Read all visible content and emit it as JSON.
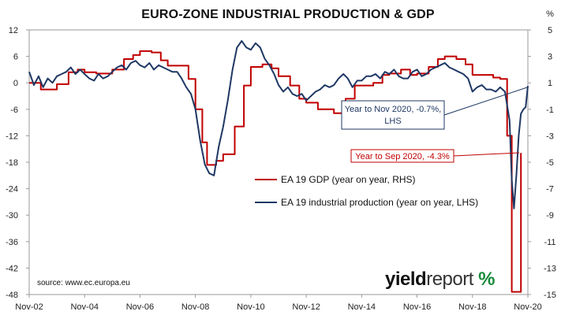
{
  "chart_data": {
    "type": "line",
    "title": "EURO-ZONE INDUSTRIAL PRODUCTION & GDP",
    "x_tick_labels": [
      "Nov-02",
      "Nov-04",
      "Nov-06",
      "Nov-08",
      "Nov-10",
      "Nov-12",
      "Nov-14",
      "Nov-16",
      "Nov-18",
      "Nov-20"
    ],
    "x_range": [
      2002.83,
      2020.83
    ],
    "left_axis": {
      "range": [
        -48,
        12
      ],
      "ticks": [
        12,
        6,
        0,
        -6,
        -12,
        -18,
        -24,
        -30,
        -36,
        -42,
        -48
      ]
    },
    "right_axis": {
      "unit_label": "%",
      "range": [
        -15,
        5
      ],
      "ticks": [
        5,
        3,
        1,
        -1,
        -3,
        -5,
        -7,
        -9,
        -11,
        -13,
        -15
      ]
    },
    "grid": false,
    "legend": {
      "placement": "center-right",
      "entries": [
        {
          "name": "EA 19 GDP (year on year, RHS)",
          "color": "#c00000"
        },
        {
          "name": "EA 19 industrial production (year on year, LHS)",
          "color": "#1f3864"
        }
      ]
    },
    "series": [
      {
        "name": "EA 19 GDP (year on year, RHS)",
        "axis": "right",
        "color": "#c00000",
        "x": [
          2002.83,
          2003.25,
          2003.58,
          2003.83,
          2004.25,
          2004.58,
          2004.83,
          2005.25,
          2005.58,
          2005.83,
          2006.25,
          2006.58,
          2006.83,
          2007.25,
          2007.58,
          2007.83,
          2008.25,
          2008.58,
          2008.83,
          2009.08,
          2009.25,
          2009.58,
          2009.83,
          2010.25,
          2010.58,
          2010.83,
          2011.25,
          2011.58,
          2011.83,
          2012.25,
          2012.58,
          2012.83,
          2013.25,
          2013.58,
          2013.83,
          2014.25,
          2014.58,
          2014.83,
          2015.25,
          2015.58,
          2015.83,
          2016.25,
          2016.58,
          2016.83,
          2017.25,
          2017.58,
          2017.83,
          2018.25,
          2018.58,
          2018.83,
          2019.25,
          2019.58,
          2019.83,
          2020.08,
          2020.25,
          2020.42,
          2020.58
        ],
        "values": [
          1.0,
          0.5,
          0.5,
          0.9,
          1.8,
          2.0,
          1.8,
          1.7,
          1.7,
          2.0,
          2.8,
          3.1,
          3.4,
          3.3,
          2.7,
          2.3,
          2.3,
          1.3,
          -1.0,
          -3.5,
          -5.2,
          -4.9,
          -4.4,
          -2.3,
          0.8,
          2.2,
          2.4,
          2.1,
          1.5,
          0.8,
          -0.2,
          -0.5,
          -1.0,
          -1.0,
          -1.3,
          -0.2,
          0.8,
          0.8,
          1.0,
          1.6,
          1.7,
          2.0,
          1.6,
          1.7,
          2.2,
          2.8,
          3.0,
          2.8,
          2.4,
          1.6,
          1.6,
          1.4,
          1.3,
          -3.0,
          -14.8,
          -14.8,
          -4.3
        ]
      },
      {
        "name": "EA 19 industrial production (year on year, LHS)",
        "axis": "left",
        "color": "#1f3864",
        "x": [
          2002.83,
          2003.0,
          2003.17,
          2003.33,
          2003.5,
          2003.67,
          2003.83,
          2004.0,
          2004.17,
          2004.33,
          2004.5,
          2004.67,
          2004.83,
          2005.0,
          2005.17,
          2005.33,
          2005.5,
          2005.67,
          2005.83,
          2006.0,
          2006.17,
          2006.33,
          2006.5,
          2006.67,
          2006.83,
          2007.0,
          2007.17,
          2007.33,
          2007.5,
          2007.67,
          2007.83,
          2008.0,
          2008.17,
          2008.33,
          2008.5,
          2008.67,
          2008.83,
          2009.0,
          2009.17,
          2009.33,
          2009.5,
          2009.67,
          2009.83,
          2010.0,
          2010.17,
          2010.33,
          2010.5,
          2010.67,
          2010.83,
          2011.0,
          2011.17,
          2011.33,
          2011.5,
          2011.67,
          2011.83,
          2012.0,
          2012.17,
          2012.33,
          2012.5,
          2012.67,
          2012.83,
          2013.0,
          2013.17,
          2013.33,
          2013.5,
          2013.67,
          2013.83,
          2014.0,
          2014.17,
          2014.33,
          2014.5,
          2014.67,
          2014.83,
          2015.0,
          2015.17,
          2015.33,
          2015.5,
          2015.67,
          2015.83,
          2016.0,
          2016.17,
          2016.33,
          2016.5,
          2016.67,
          2016.83,
          2017.0,
          2017.17,
          2017.33,
          2017.5,
          2017.67,
          2017.83,
          2018.0,
          2018.17,
          2018.33,
          2018.5,
          2018.67,
          2018.83,
          2019.0,
          2019.17,
          2019.33,
          2019.5,
          2019.67,
          2019.83,
          2020.0,
          2020.17,
          2020.25,
          2020.33,
          2020.42,
          2020.5,
          2020.58,
          2020.67,
          2020.75,
          2020.83
        ],
        "values": [
          2.5,
          -0.5,
          1.5,
          -1.0,
          1.0,
          0.0,
          1.5,
          2.0,
          2.5,
          3.5,
          2.0,
          3.0,
          2.0,
          1.0,
          0.5,
          2.0,
          1.0,
          1.5,
          2.5,
          3.5,
          4.0,
          3.0,
          4.5,
          5.0,
          4.0,
          3.5,
          4.5,
          3.0,
          4.0,
          3.5,
          3.0,
          2.5,
          2.5,
          1.0,
          -1.0,
          -2.5,
          -6.0,
          -13.0,
          -18.5,
          -20.5,
          -21.0,
          -14.5,
          -10.0,
          -4.0,
          3.0,
          8.0,
          9.5,
          8.0,
          7.5,
          9.0,
          8.0,
          5.5,
          4.0,
          2.0,
          -0.5,
          -2.0,
          -1.0,
          -2.5,
          -3.0,
          -2.5,
          -4.0,
          -3.0,
          -2.0,
          -1.5,
          -0.5,
          -1.0,
          -0.5,
          1.0,
          2.0,
          1.0,
          -1.0,
          0.5,
          0.5,
          1.5,
          1.5,
          2.0,
          1.0,
          2.5,
          2.0,
          3.0,
          1.5,
          1.0,
          1.0,
          2.5,
          3.0,
          1.5,
          2.0,
          3.0,
          3.5,
          4.0,
          4.5,
          3.5,
          3.0,
          2.5,
          2.0,
          1.0,
          -2.0,
          -1.0,
          -0.5,
          -1.5,
          -1.5,
          -2.0,
          -1.0,
          -2.0,
          -8.5,
          -22.0,
          -28.5,
          -20.5,
          -12.0,
          -7.0,
          -6.0,
          -5.5,
          -0.7
        ]
      }
    ],
    "annotations": [
      {
        "text_line1": "Year to Nov 2020, -0.7%,",
        "text_line2": "LHS",
        "color": "#1f3864",
        "target_x": 2020.83,
        "target_value": -0.7,
        "target_axis": "left"
      },
      {
        "text": "Year to Sep 2020, -4.3%",
        "color": "#c00000",
        "target_x": 2020.58,
        "target_value": -4.3,
        "target_axis": "right"
      }
    ],
    "source": "source: www.ec.europa.eu"
  },
  "branding": {
    "word1": "yield",
    "word2": "report",
    "symbol": "%",
    "colors": {
      "text": "#111111",
      "symbol": "#1a8a3a"
    }
  }
}
